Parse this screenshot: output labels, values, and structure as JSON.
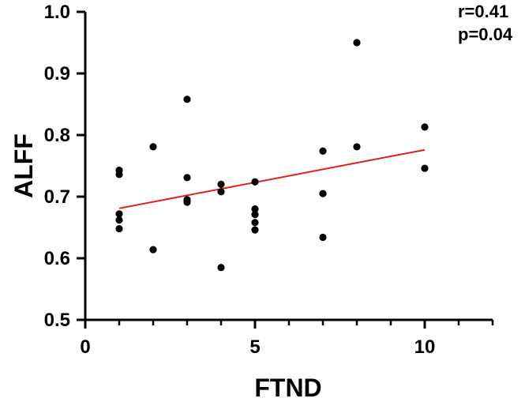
{
  "chart_data": {
    "type": "scatter",
    "xlabel": "FTND",
    "ylabel": "ALFF",
    "xlim": [
      0,
      12
    ],
    "ylim": [
      0.5,
      1.0
    ],
    "x_ticks": [
      0,
      5,
      10
    ],
    "x_tick_labels": [
      "0",
      "5",
      "10"
    ],
    "x_minor_ticks": [
      1,
      2,
      3,
      4,
      6,
      7,
      8,
      9,
      11,
      12
    ],
    "y_ticks": [
      0.5,
      0.6,
      0.7,
      0.8,
      0.9,
      1.0
    ],
    "y_tick_labels": [
      "0.5",
      "0.6",
      "0.7",
      "0.8",
      "0.9",
      "1.0"
    ],
    "grid": false,
    "annotations": [
      "r=0.41",
      "p=0.04"
    ],
    "points": [
      {
        "x": 1,
        "y": 0.743
      },
      {
        "x": 1,
        "y": 0.736
      },
      {
        "x": 1,
        "y": 0.672
      },
      {
        "x": 1,
        "y": 0.662
      },
      {
        "x": 1,
        "y": 0.648
      },
      {
        "x": 2,
        "y": 0.781
      },
      {
        "x": 2,
        "y": 0.614
      },
      {
        "x": 3,
        "y": 0.858
      },
      {
        "x": 3,
        "y": 0.731
      },
      {
        "x": 3,
        "y": 0.695
      },
      {
        "x": 3,
        "y": 0.691
      },
      {
        "x": 4,
        "y": 0.72
      },
      {
        "x": 4,
        "y": 0.708
      },
      {
        "x": 4,
        "y": 0.585
      },
      {
        "x": 5,
        "y": 0.724
      },
      {
        "x": 5,
        "y": 0.68
      },
      {
        "x": 5,
        "y": 0.671
      },
      {
        "x": 5,
        "y": 0.658
      },
      {
        "x": 5,
        "y": 0.646
      },
      {
        "x": 7,
        "y": 0.774
      },
      {
        "x": 7,
        "y": 0.705
      },
      {
        "x": 7,
        "y": 0.634
      },
      {
        "x": 8,
        "y": 0.95
      },
      {
        "x": 8,
        "y": 0.781
      },
      {
        "x": 10,
        "y": 0.813
      },
      {
        "x": 10,
        "y": 0.746
      }
    ],
    "fit_line": {
      "x": [
        1,
        10
      ],
      "y": [
        0.681,
        0.776
      ],
      "color": "#e0201b"
    },
    "point_color": "#000000"
  }
}
